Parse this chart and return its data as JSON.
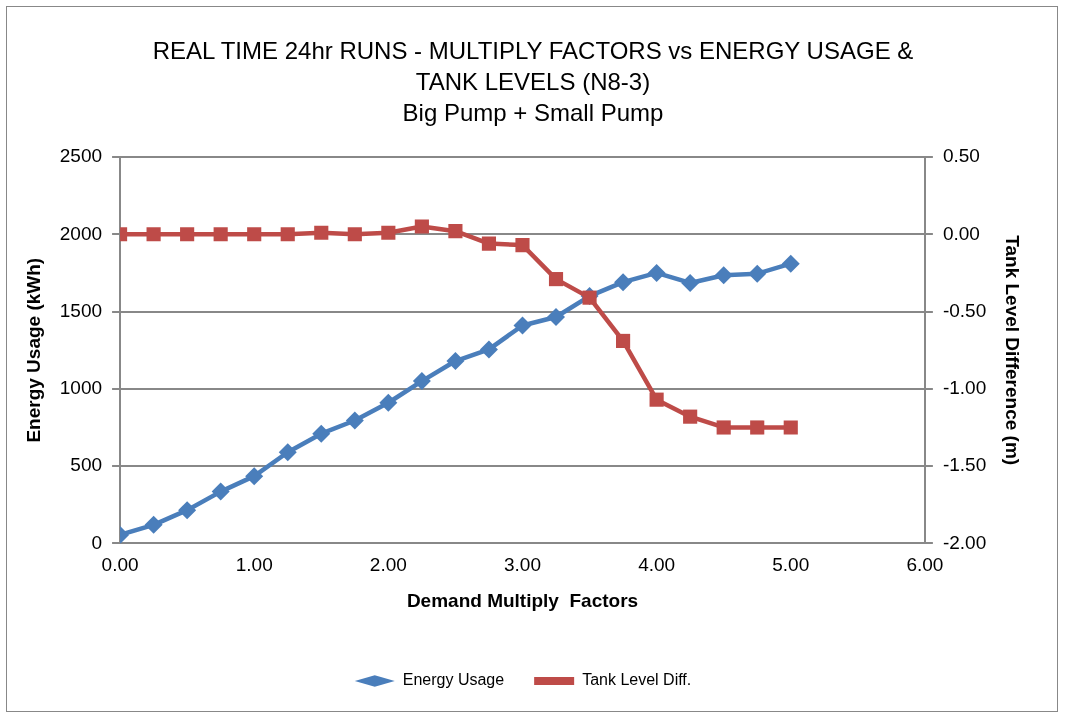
{
  "chart_data": {
    "type": "line",
    "title": "REAL TIME 24hr RUNS - MULTIPLY FACTORS vs ENERGY USAGE & TANK LEVELS (N8-3)",
    "subtitle": "Big Pump + Small Pump",
    "xlabel": "Demand Multiply  Factors",
    "ylabel": "Energy Usage (kWh)",
    "y2label": "Tank Level Difference (m)",
    "x": [
      0,
      0.25,
      0.5,
      0.75,
      1,
      1.25,
      1.5,
      1.75,
      2,
      2.25,
      2.5,
      2.75,
      3,
      3.25,
      3.5,
      3.75,
      4,
      4.25,
      4.5,
      4.75,
      5
    ],
    "series": [
      {
        "name": "Energy Usage",
        "color": "#4a7ebb",
        "marker": "diamond",
        "values": [
          55,
          120,
          215,
          335,
          435,
          590,
          710,
          795,
          910,
          1050,
          1180,
          1255,
          1410,
          1465,
          1600,
          1690,
          1750,
          1685,
          1735,
          1745,
          1810
        ]
      },
      {
        "name": "Tank Level Diff.",
        "color": "#be4b48",
        "marker": "square",
        "axis": "y2",
        "values": [
          0,
          0,
          0,
          0,
          0,
          0,
          0.01,
          0,
          0.01,
          0.05,
          0.02,
          -0.06,
          -0.07,
          -0.29,
          -0.41,
          -0.69,
          -1.07,
          -1.18,
          -1.25,
          -1.25,
          -1.25
        ]
      }
    ],
    "xlim": [
      0,
      6
    ],
    "xticks": [
      {
        "value": 0,
        "label": "0.00"
      },
      {
        "value": 1,
        "label": "1.00"
      },
      {
        "value": 2,
        "label": "2.00"
      },
      {
        "value": 3,
        "label": "3.00"
      },
      {
        "value": 4,
        "label": "4.00"
      },
      {
        "value": 5,
        "label": "5.00"
      },
      {
        "value": 6,
        "label": "6.00"
      }
    ],
    "ylim": [
      0,
      2500
    ],
    "yticks": [
      0,
      500,
      1000,
      1500,
      2000,
      2500
    ],
    "y2lim": [
      -2,
      0.5
    ],
    "y2ticks": [
      {
        "value": -2,
        "label": "-2.00"
      },
      {
        "value": -1.5,
        "label": "-1.50"
      },
      {
        "value": -1,
        "label": "-1.00"
      },
      {
        "value": -0.5,
        "label": "-0.50"
      },
      {
        "value": 0,
        "label": "0.00"
      },
      {
        "value": 0.5,
        "label": "0.50"
      }
    ],
    "grid": "y",
    "legend": "bottom",
    "line_style": "solid"
  }
}
